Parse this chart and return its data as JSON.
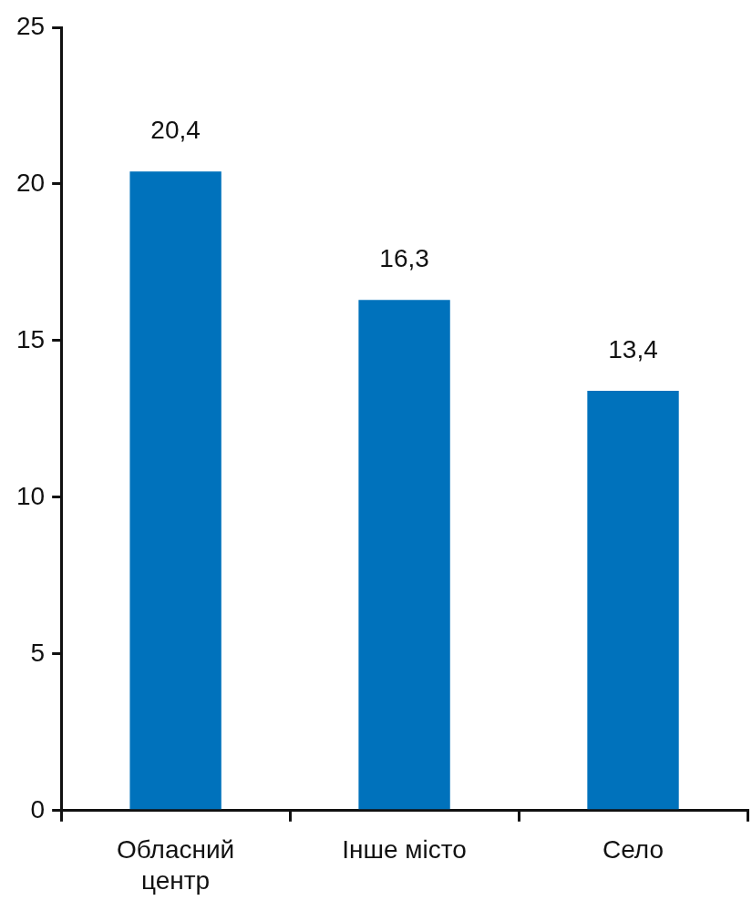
{
  "chart_data": {
    "type": "bar",
    "categories": [
      "Обласний центр",
      "Інше місто",
      "Село"
    ],
    "values": [
      20.4,
      16.3,
      13.4
    ],
    "value_labels": [
      "20,4",
      "16,3",
      "13,4"
    ],
    "color": "#0072bc",
    "ylim": [
      0,
      25
    ],
    "yticks": [
      0,
      5,
      10,
      15,
      20,
      25
    ],
    "grid": false,
    "legend": false
  }
}
